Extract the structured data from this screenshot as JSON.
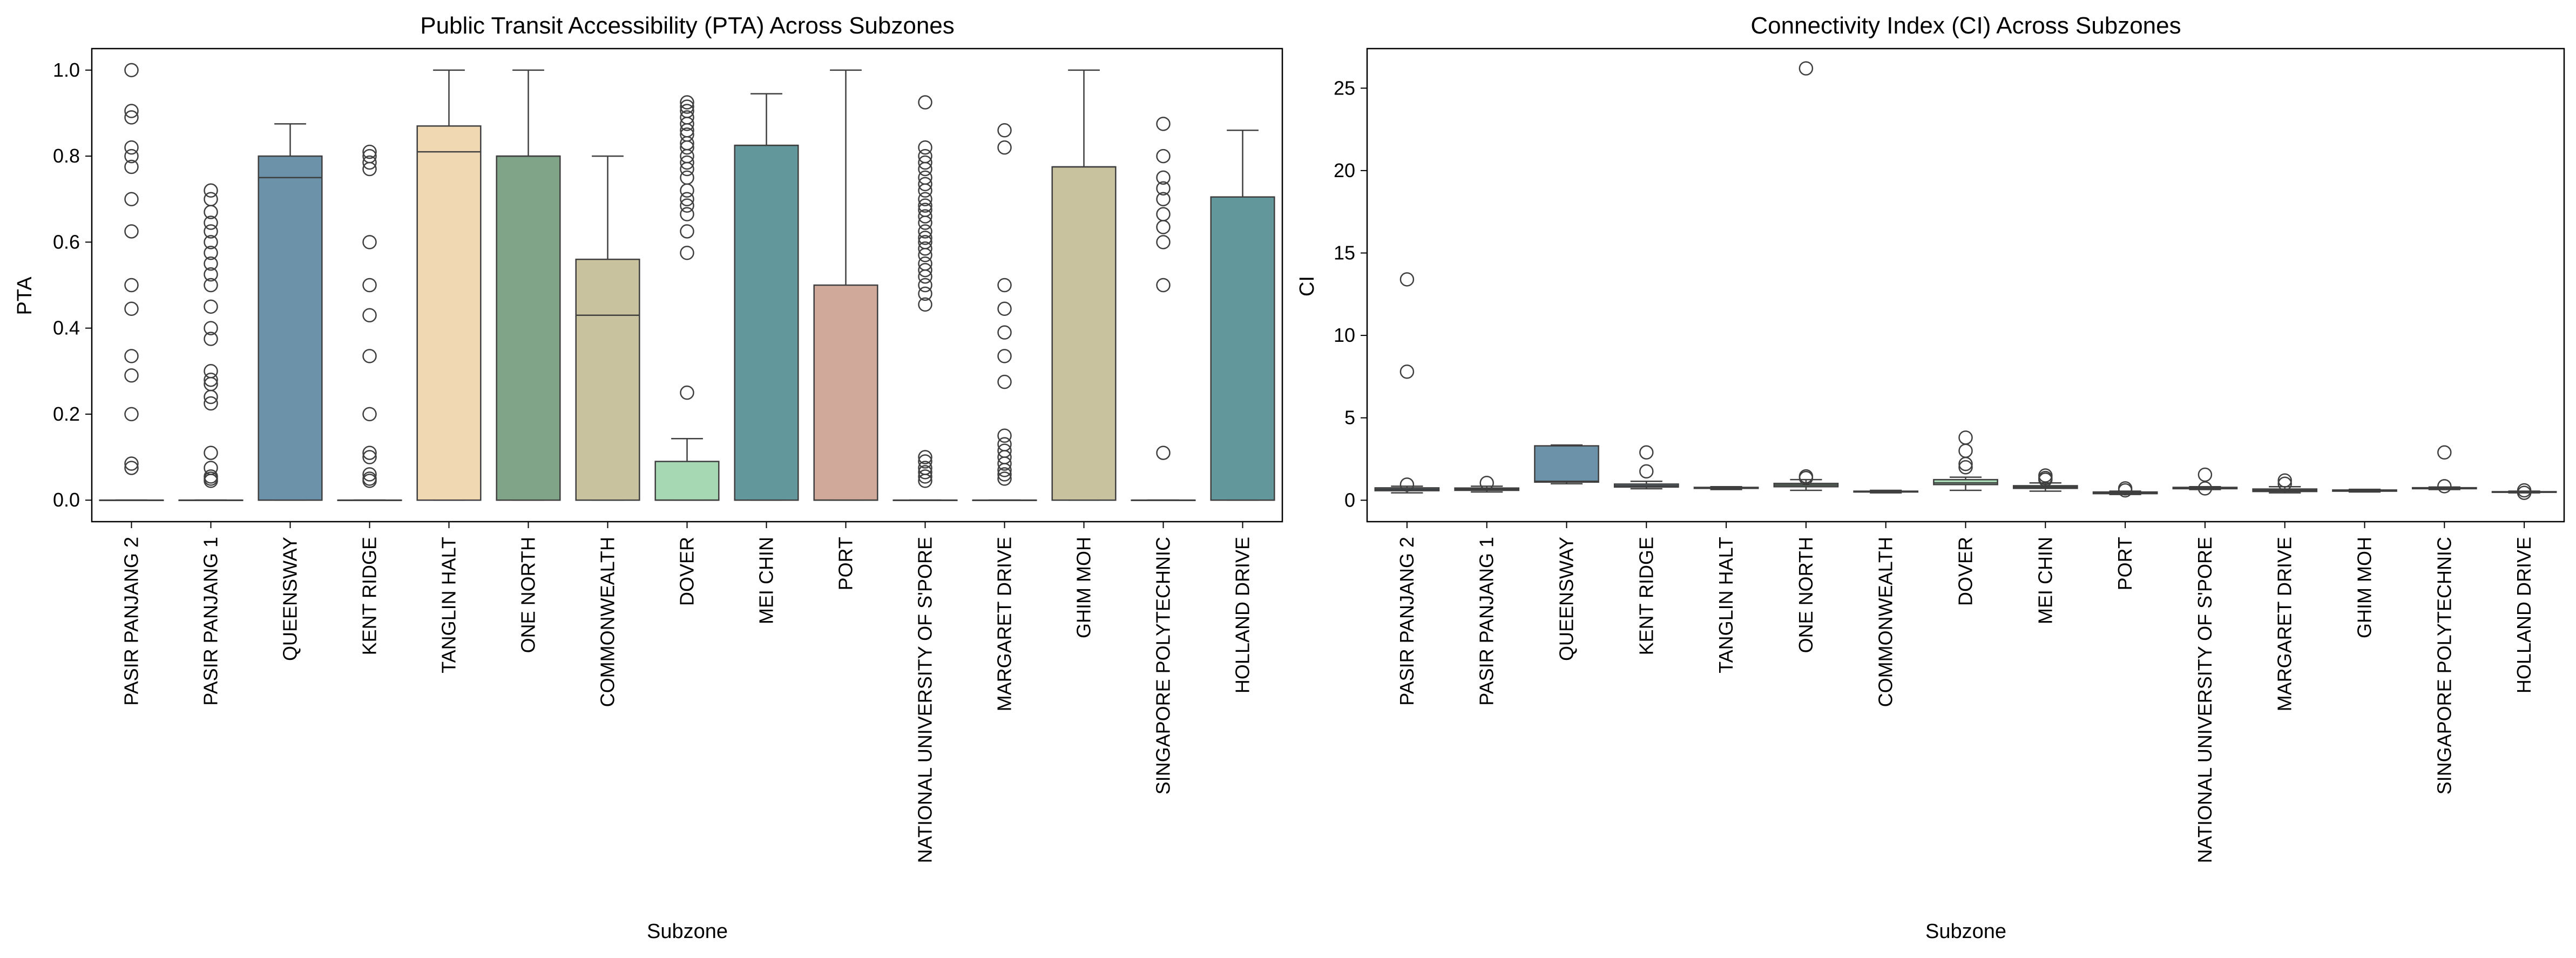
{
  "chart_data": [
    {
      "type": "box",
      "title": "Public Transit Accessibility (PTA) Across Subzones",
      "xlabel": "Subzone",
      "ylabel": "PTA",
      "ylim": [
        -0.05,
        1.05
      ],
      "yticks": [
        0.0,
        0.2,
        0.4,
        0.6,
        0.8,
        1.0
      ],
      "ytick_labels": [
        "0.0",
        "0.2",
        "0.4",
        "0.6",
        "0.8",
        "1.0"
      ],
      "grid": false,
      "categories": [
        "PASIR PANJANG 2",
        "PASIR PANJANG 1",
        "QUEENSWAY",
        "KENT RIDGE",
        "TANGLIN HALT",
        "ONE NORTH",
        "COMMONWEALTH",
        "DOVER",
        "MEI CHIN",
        "PORT",
        "NATIONAL UNIVERSITY OF S'PORE",
        "MARGARET DRIVE",
        "GHIM MOH",
        "SINGAPORE POLYTECHNIC",
        "HOLLAND DRIVE"
      ],
      "colors": [
        "#6b92a8",
        "#6b92a8",
        "#6b92a8",
        "#6b92a8",
        "#f0d8b2",
        "#80a487",
        "#c8c29e",
        "#a6d8b4",
        "#62979b",
        "#d1a99b",
        "#6b92a8",
        "#6b92a8",
        "#c8c29e",
        "#6b92a8",
        "#62979b"
      ],
      "boxes": [
        {
          "whislo": 0,
          "q1": 0,
          "med": 0,
          "q3": 0,
          "whishi": 0,
          "fliers": [
            1.0,
            0.905,
            0.89,
            0.82,
            0.8,
            0.775,
            0.7,
            0.625,
            0.5,
            0.445,
            0.335,
            0.29,
            0.2,
            0.085,
            0.075
          ]
        },
        {
          "whislo": 0,
          "q1": 0,
          "med": 0,
          "q3": 0,
          "whishi": 0,
          "fliers": [
            0.72,
            0.7,
            0.67,
            0.645,
            0.625,
            0.6,
            0.575,
            0.55,
            0.525,
            0.5,
            0.45,
            0.4,
            0.375,
            0.3,
            0.28,
            0.27,
            0.24,
            0.225,
            0.11,
            0.075,
            0.055,
            0.05,
            0.045
          ]
        },
        {
          "whislo": 0,
          "q1": 0,
          "med": 0.75,
          "q3": 0.8,
          "whishi": 0.875,
          "fliers": []
        },
        {
          "whislo": 0,
          "q1": 0,
          "med": 0,
          "q3": 0,
          "whishi": 0,
          "fliers": [
            0.81,
            0.8,
            0.785,
            0.77,
            0.6,
            0.5,
            0.43,
            0.335,
            0.2,
            0.11,
            0.1,
            0.06,
            0.05,
            0.045
          ]
        },
        {
          "whislo": 0,
          "q1": 0,
          "med": 0.81,
          "q3": 0.87,
          "whishi": 1.0,
          "fliers": []
        },
        {
          "whislo": 0,
          "q1": 0,
          "med": 0.8,
          "q3": 0.8,
          "whishi": 1.0,
          "fliers": []
        },
        {
          "whislo": 0,
          "q1": 0,
          "med": 0.43,
          "q3": 0.56,
          "whishi": 0.8,
          "fliers": []
        },
        {
          "whislo": 0,
          "q1": 0,
          "med": 0,
          "q3": 0.09,
          "whishi": 0.143,
          "fliers": [
            0.925,
            0.915,
            0.905,
            0.89,
            0.875,
            0.86,
            0.85,
            0.83,
            0.82,
            0.8,
            0.785,
            0.77,
            0.75,
            0.72,
            0.7,
            0.685,
            0.665,
            0.625,
            0.575,
            0.25
          ]
        },
        {
          "whislo": 0,
          "q1": 0,
          "med": 0.825,
          "q3": 0.825,
          "whishi": 0.945,
          "fliers": []
        },
        {
          "whislo": 0,
          "q1": 0,
          "med": 0,
          "q3": 0.5,
          "whishi": 1.0,
          "fliers": []
        },
        {
          "whislo": 0,
          "q1": 0,
          "med": 0,
          "q3": 0,
          "whishi": 0,
          "fliers": [
            0.925,
            0.82,
            0.8,
            0.785,
            0.77,
            0.75,
            0.735,
            0.72,
            0.7,
            0.685,
            0.675,
            0.66,
            0.645,
            0.625,
            0.61,
            0.6,
            0.585,
            0.57,
            0.55,
            0.535,
            0.52,
            0.5,
            0.48,
            0.455,
            0.1,
            0.09,
            0.075,
            0.065,
            0.055,
            0.045
          ]
        },
        {
          "whislo": 0,
          "q1": 0,
          "med": 0,
          "q3": 0,
          "whishi": 0,
          "fliers": [
            0.86,
            0.82,
            0.5,
            0.445,
            0.39,
            0.335,
            0.275,
            0.15,
            0.13,
            0.115,
            0.1,
            0.085,
            0.07,
            0.06,
            0.05
          ]
        },
        {
          "whislo": 0,
          "q1": 0,
          "med": 0.775,
          "q3": 0.775,
          "whishi": 1.0,
          "fliers": []
        },
        {
          "whislo": 0,
          "q1": 0,
          "med": 0,
          "q3": 0,
          "whishi": 0,
          "fliers": [
            0.875,
            0.8,
            0.75,
            0.725,
            0.7,
            0.665,
            0.635,
            0.6,
            0.5,
            0.11
          ]
        },
        {
          "whislo": 0,
          "q1": 0,
          "med": 0.705,
          "q3": 0.705,
          "whishi": 0.86,
          "fliers": []
        }
      ]
    },
    {
      "type": "box",
      "title": "Connectivity Index (CI) Across Subzones",
      "xlabel": "Subzone",
      "ylabel": "CI",
      "ylim": [
        -1.3,
        27.4
      ],
      "yticks": [
        0,
        5,
        10,
        15,
        20,
        25
      ],
      "ytick_labels": [
        "0",
        "5",
        "10",
        "15",
        "20",
        "25"
      ],
      "grid": false,
      "categories": [
        "PASIR PANJANG 2",
        "PASIR PANJANG 1",
        "QUEENSWAY",
        "KENT RIDGE",
        "TANGLIN HALT",
        "ONE NORTH",
        "COMMONWEALTH",
        "DOVER",
        "MEI CHIN",
        "PORT",
        "NATIONAL UNIVERSITY OF S'PORE",
        "MARGARET DRIVE",
        "GHIM MOH",
        "SINGAPORE POLYTECHNIC",
        "HOLLAND DRIVE"
      ],
      "colors": [
        "#6b92a8",
        "#6b92a8",
        "#6b92a8",
        "#6b92a8",
        "#f0d8b2",
        "#80a487",
        "#c8c29e",
        "#a6d8b4",
        "#62979b",
        "#d1a99b",
        "#6b92a8",
        "#6b92a8",
        "#c8c29e",
        "#6b92a8",
        "#62979b"
      ],
      "boxes": [
        {
          "whislo": 0.45,
          "q1": 0.58,
          "med": 0.66,
          "q3": 0.75,
          "whishi": 0.85,
          "fliers": [
            13.4,
            7.8,
            0.95
          ]
        },
        {
          "whislo": 0.5,
          "q1": 0.6,
          "med": 0.66,
          "q3": 0.74,
          "whishi": 0.85,
          "fliers": [
            1.05
          ]
        },
        {
          "whislo": 1.0,
          "q1": 1.1,
          "med": 1.15,
          "q3": 3.3,
          "whishi": 3.35,
          "fliers": []
        },
        {
          "whislo": 0.7,
          "q1": 0.8,
          "med": 0.88,
          "q3": 0.98,
          "whishi": 1.15,
          "fliers": [
            2.9,
            1.75
          ]
        },
        {
          "whislo": 0.65,
          "q1": 0.72,
          "med": 0.74,
          "q3": 0.78,
          "whishi": 0.82,
          "fliers": []
        },
        {
          "whislo": 0.6,
          "q1": 0.82,
          "med": 0.92,
          "q3": 1.02,
          "whishi": 1.25,
          "fliers": [
            26.2,
            1.45,
            1.35
          ]
        },
        {
          "whislo": 0.45,
          "q1": 0.5,
          "med": 0.52,
          "q3": 0.55,
          "whishi": 0.6,
          "fliers": []
        },
        {
          "whislo": 0.6,
          "q1": 0.95,
          "med": 1.05,
          "q3": 1.25,
          "whishi": 1.4,
          "fliers": [
            3.8,
            3.0,
            2.2,
            2.0
          ]
        },
        {
          "whislo": 0.55,
          "q1": 0.72,
          "med": 0.8,
          "q3": 0.88,
          "whishi": 1.05,
          "fliers": [
            1.5,
            1.35,
            1.25
          ]
        },
        {
          "whislo": 0.35,
          "q1": 0.4,
          "med": 0.44,
          "q3": 0.5,
          "whishi": 0.55,
          "fliers": [
            0.72,
            0.6
          ]
        },
        {
          "whislo": 0.65,
          "q1": 0.7,
          "med": 0.74,
          "q3": 0.78,
          "whishi": 0.82,
          "fliers": [
            1.55,
            0.72
          ]
        },
        {
          "whislo": 0.45,
          "q1": 0.53,
          "med": 0.6,
          "q3": 0.68,
          "whishi": 0.82,
          "fliers": [
            1.2,
            1.0
          ]
        },
        {
          "whislo": 0.5,
          "q1": 0.55,
          "med": 0.58,
          "q3": 0.62,
          "whishi": 0.66,
          "fliers": []
        },
        {
          "whislo": 0.65,
          "q1": 0.7,
          "med": 0.73,
          "q3": 0.76,
          "whishi": 0.8,
          "fliers": [
            2.9,
            0.85
          ]
        },
        {
          "whislo": 0.45,
          "q1": 0.48,
          "med": 0.5,
          "q3": 0.52,
          "whishi": 0.55,
          "fliers": [
            0.6,
            0.45
          ]
        }
      ]
    }
  ]
}
